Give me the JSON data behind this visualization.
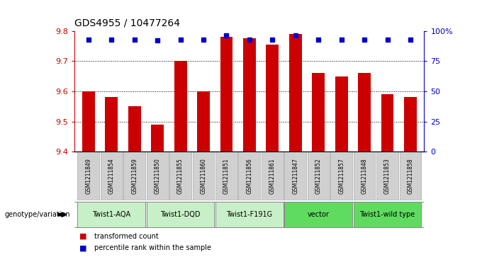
{
  "title": "GDS4955 / 10477264",
  "samples": [
    "GSM1211849",
    "GSM1211854",
    "GSM1211859",
    "GSM1211850",
    "GSM1211855",
    "GSM1211860",
    "GSM1211851",
    "GSM1211856",
    "GSM1211861",
    "GSM1211847",
    "GSM1211852",
    "GSM1211857",
    "GSM1211848",
    "GSM1211853",
    "GSM1211858"
  ],
  "bar_values": [
    9.6,
    9.58,
    9.55,
    9.49,
    9.7,
    9.6,
    9.78,
    9.775,
    9.755,
    9.79,
    9.66,
    9.65,
    9.66,
    9.59,
    9.58
  ],
  "percentile_right": [
    93,
    93,
    93,
    92,
    93,
    93,
    96,
    93,
    93,
    96,
    93,
    93,
    93,
    93,
    93
  ],
  "bar_bottom": 9.4,
  "ylim_left": [
    9.4,
    9.8
  ],
  "ylim_right": [
    0,
    100
  ],
  "yticks_left": [
    9.4,
    9.5,
    9.6,
    9.7,
    9.8
  ],
  "yticks_right": [
    0,
    25,
    50,
    75,
    100
  ],
  "ytick_right_labels": [
    "0",
    "25",
    "50",
    "75",
    "100%"
  ],
  "bar_color": "#CC0000",
  "percentile_color": "#0000CC",
  "groups": [
    {
      "label": "Twist1-AQA",
      "start": 0,
      "end": 2,
      "color": "#c8f0c8"
    },
    {
      "label": "Twist1-DQD",
      "start": 3,
      "end": 5,
      "color": "#c8f0c8"
    },
    {
      "label": "Twist1-F191G",
      "start": 6,
      "end": 8,
      "color": "#c8f0c8"
    },
    {
      "label": "vector",
      "start": 9,
      "end": 11,
      "color": "#5fdc5f"
    },
    {
      "label": "Twist1-wild type",
      "start": 12,
      "end": 14,
      "color": "#5fdc5f"
    }
  ],
  "sample_box_color": "#d0d0d0",
  "xlabel_left": "genotype/variation",
  "legend_items": [
    {
      "label": "transformed count",
      "color": "#CC0000"
    },
    {
      "label": "percentile rank within the sample",
      "color": "#0000CC"
    }
  ],
  "left_spine_color": "#CC0000",
  "right_spine_color": "#0000CC"
}
